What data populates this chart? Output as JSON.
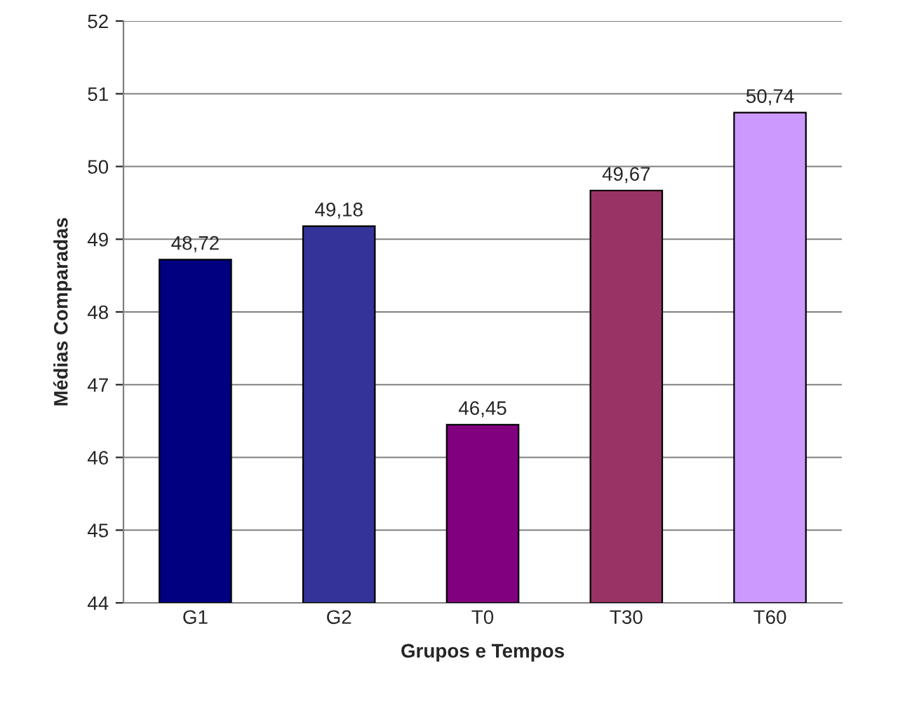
{
  "chart_data": {
    "type": "bar",
    "xlabel": "Grupos e Tempos",
    "ylabel": "Médias Comparadas",
    "categories": [
      "G1",
      "G2",
      "T0",
      "T30",
      "T60"
    ],
    "values": [
      48.72,
      49.18,
      46.45,
      49.67,
      50.74
    ],
    "colors": [
      "#000080",
      "#333399",
      "#800080",
      "#993366",
      "#cc99ff"
    ],
    "value_labels": [
      "48,72",
      "49,18",
      "46,45",
      "49,67",
      "50,74"
    ],
    "ylim": [
      44,
      52
    ],
    "yticks": [
      44,
      45,
      46,
      47,
      48,
      49,
      50,
      51,
      52
    ],
    "grid": "y",
    "legend": false
  }
}
